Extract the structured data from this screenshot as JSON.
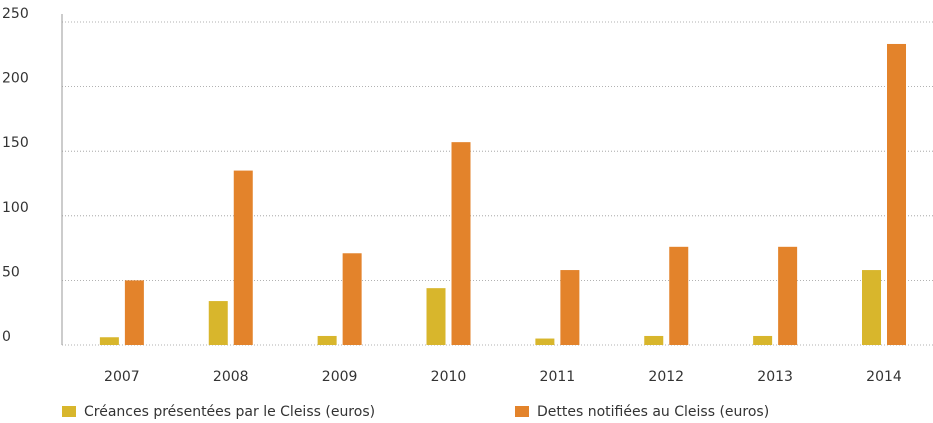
{
  "chart_data": {
    "type": "bar",
    "categories": [
      "2007",
      "2008",
      "2009",
      "2010",
      "2011",
      "2012",
      "2013",
      "2014"
    ],
    "series": [
      {
        "name": "Créances présentées par le Cleiss (euros)",
        "color": "#d8b62c",
        "values": [
          6,
          34,
          7,
          44,
          5,
          7,
          7,
          58
        ]
      },
      {
        "name": "Dettes notifiées au Cleiss (euros)",
        "color": "#e3832b",
        "values": [
          50,
          135,
          71,
          157,
          58,
          76,
          76,
          233
        ]
      }
    ],
    "ylim": [
      0,
      250
    ],
    "yticks": [
      0,
      50,
      100,
      150,
      200,
      250
    ],
    "grid": true
  }
}
